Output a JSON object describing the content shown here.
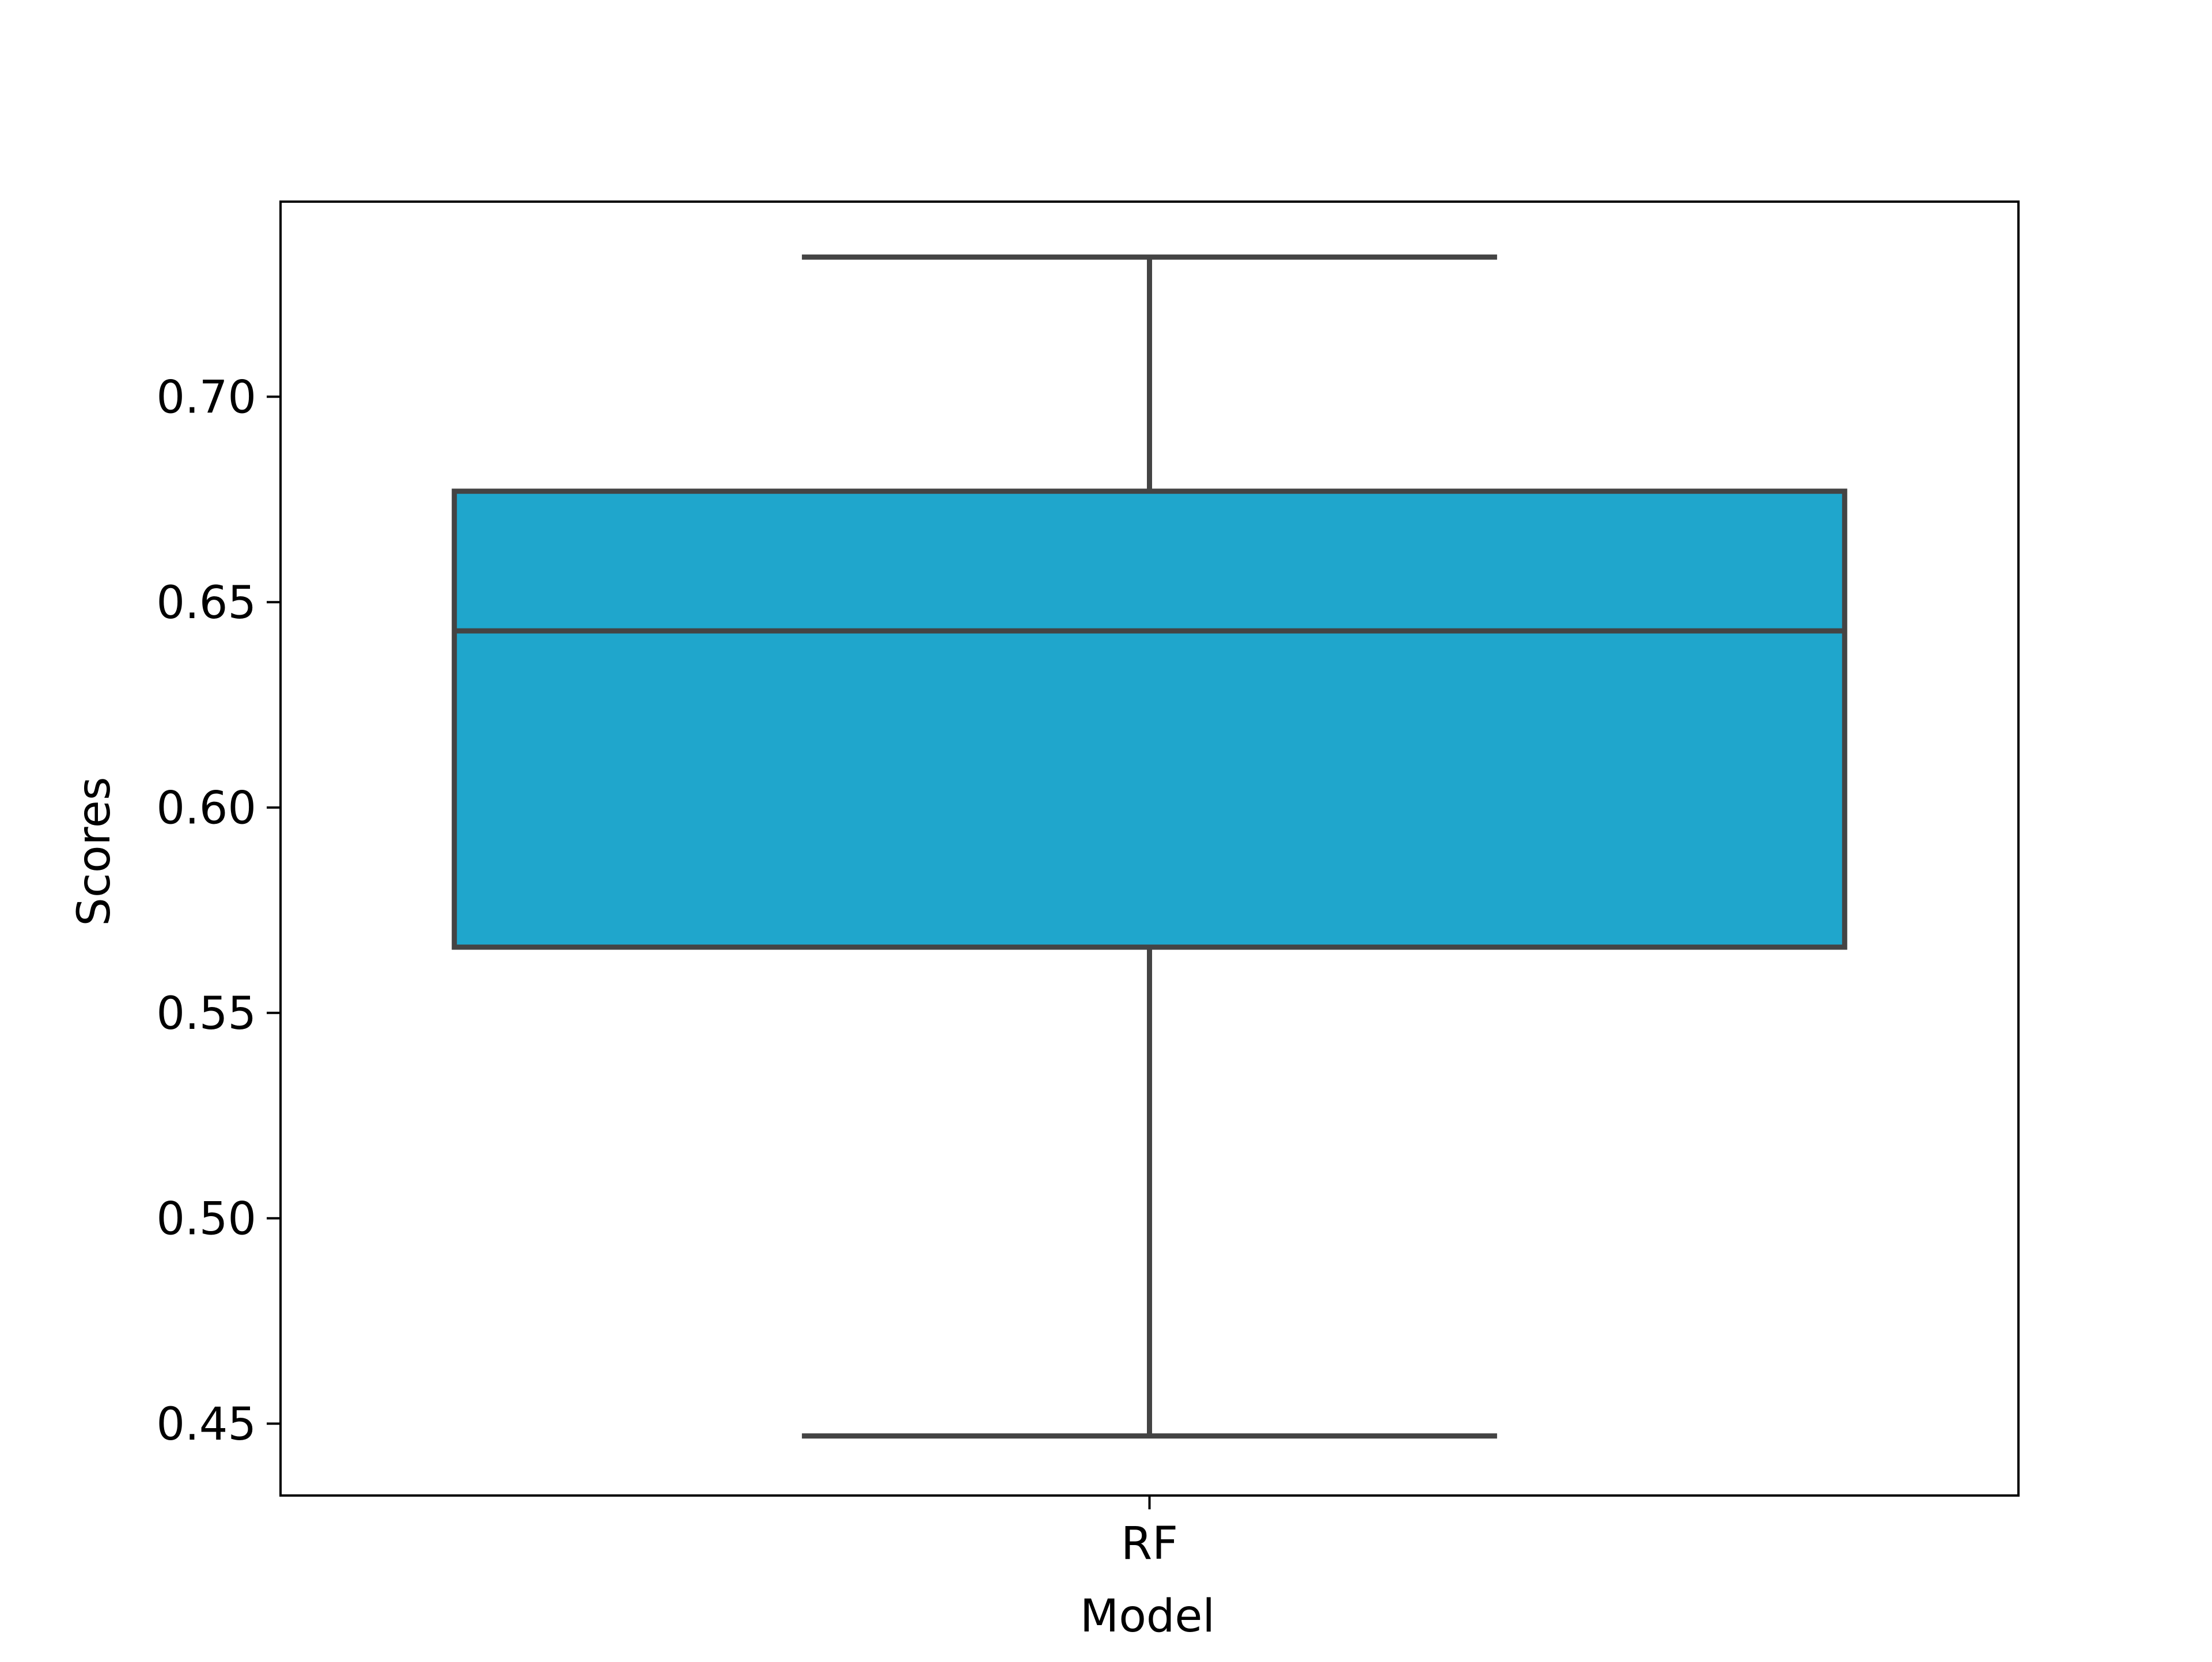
{
  "chart_data": {
    "type": "box",
    "title": "",
    "xlabel": "Model",
    "ylabel": "Scores",
    "categories": [
      "RF"
    ],
    "ylim": [
      0.4325,
      0.7475
    ],
    "yticks": [
      0.45,
      0.5,
      0.55,
      0.6,
      0.65,
      0.7
    ],
    "ytick_labels": [
      "0.45",
      "0.50",
      "0.55",
      "0.60",
      "0.65",
      "0.70"
    ],
    "boxes": [
      {
        "category": "RF",
        "whisker_low": 0.447,
        "q1": 0.566,
        "median": 0.643,
        "q3": 0.677,
        "whisker_high": 0.734
      }
    ],
    "box_color": "#1fa6cc",
    "line_color": "#444444",
    "grid": false,
    "legend": "none"
  }
}
